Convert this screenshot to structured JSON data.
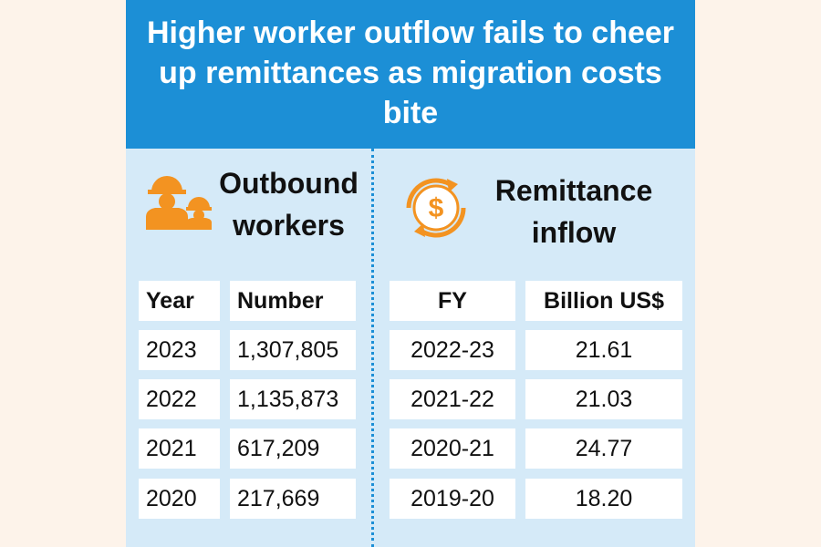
{
  "header": {
    "title": "Higher worker outflow fails to cheer up remittances as migration costs bite"
  },
  "workers": {
    "title": "Outbound workers",
    "table": {
      "columns": [
        "Year",
        "Number"
      ],
      "rows": [
        [
          "2023",
          "1,307,805"
        ],
        [
          "2022",
          "1,135,873"
        ],
        [
          "2021",
          "617,209"
        ],
        [
          "2020",
          "217,669"
        ]
      ]
    }
  },
  "remittance": {
    "title": "Remittance inflow",
    "table": {
      "columns": [
        "FY",
        "Billion US$"
      ],
      "rows": [
        [
          "2022-23",
          "21.61"
        ],
        [
          "2021-22",
          "21.03"
        ],
        [
          "2020-21",
          "24.77"
        ],
        [
          "2019-20",
          "18.20"
        ]
      ]
    }
  }
}
